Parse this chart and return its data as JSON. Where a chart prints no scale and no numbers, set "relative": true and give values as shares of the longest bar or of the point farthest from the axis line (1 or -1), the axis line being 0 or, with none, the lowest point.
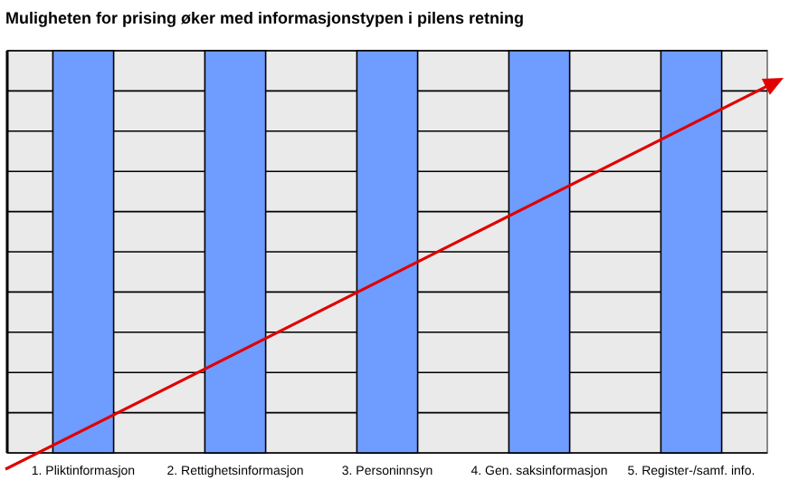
{
  "chart_data": {
    "type": "bar",
    "title": "Muligheten for prising øker med informasjonstypen i pilens retning",
    "categories": [
      "1. Pliktinformasjon",
      "2. Rettighetsinformasjon",
      "3. Personinnsyn",
      "4. Gen. saksinformasjon",
      "5. Register-/samf. info."
    ],
    "values": [
      1,
      1,
      1,
      1,
      1
    ],
    "color": "#6f9cff",
    "relative": true,
    "grid": "y"
  }
}
